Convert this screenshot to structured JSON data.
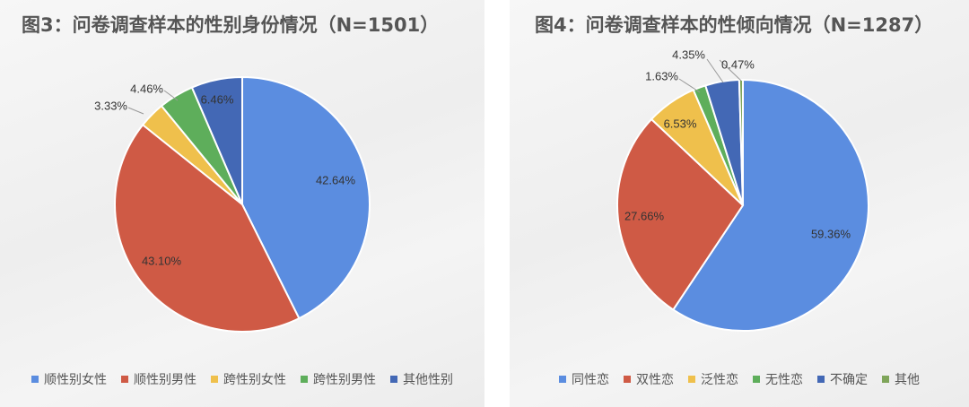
{
  "chart_data": [
    {
      "type": "pie",
      "title": "图3：问卷调查样本的性别身份情况（N=1501）",
      "categories": [
        "顺性别女性",
        "顺性别男性",
        "跨性别女性",
        "跨性别男性",
        "其他性别"
      ],
      "values": [
        42.64,
        43.1,
        3.33,
        4.46,
        6.46
      ],
      "labels": [
        "42.64%",
        "43.10%",
        "3.33%",
        "4.46%",
        "6.46%"
      ],
      "colors": [
        "#5B8DE0",
        "#CF5A45",
        "#EFC04C",
        "#5EAE5B",
        "#4368B5"
      ],
      "legend_position": "bottom"
    },
    {
      "type": "pie",
      "title": "图4：问卷调查样本的性倾向情况（N=1287）",
      "categories": [
        "同性恋",
        "双性恋",
        "泛性恋",
        "无性恋",
        "不确定",
        "其他"
      ],
      "values": [
        59.36,
        27.66,
        6.53,
        1.63,
        4.35,
        0.47
      ],
      "labels": [
        "59.36%",
        "27.66%",
        "6.53%",
        "1.63%",
        "4.35%",
        "0.47%"
      ],
      "colors": [
        "#5B8DE0",
        "#CF5A45",
        "#EFC04C",
        "#5EAE5B",
        "#4368B5",
        "#7FA55A"
      ],
      "legend_position": "bottom"
    }
  ]
}
